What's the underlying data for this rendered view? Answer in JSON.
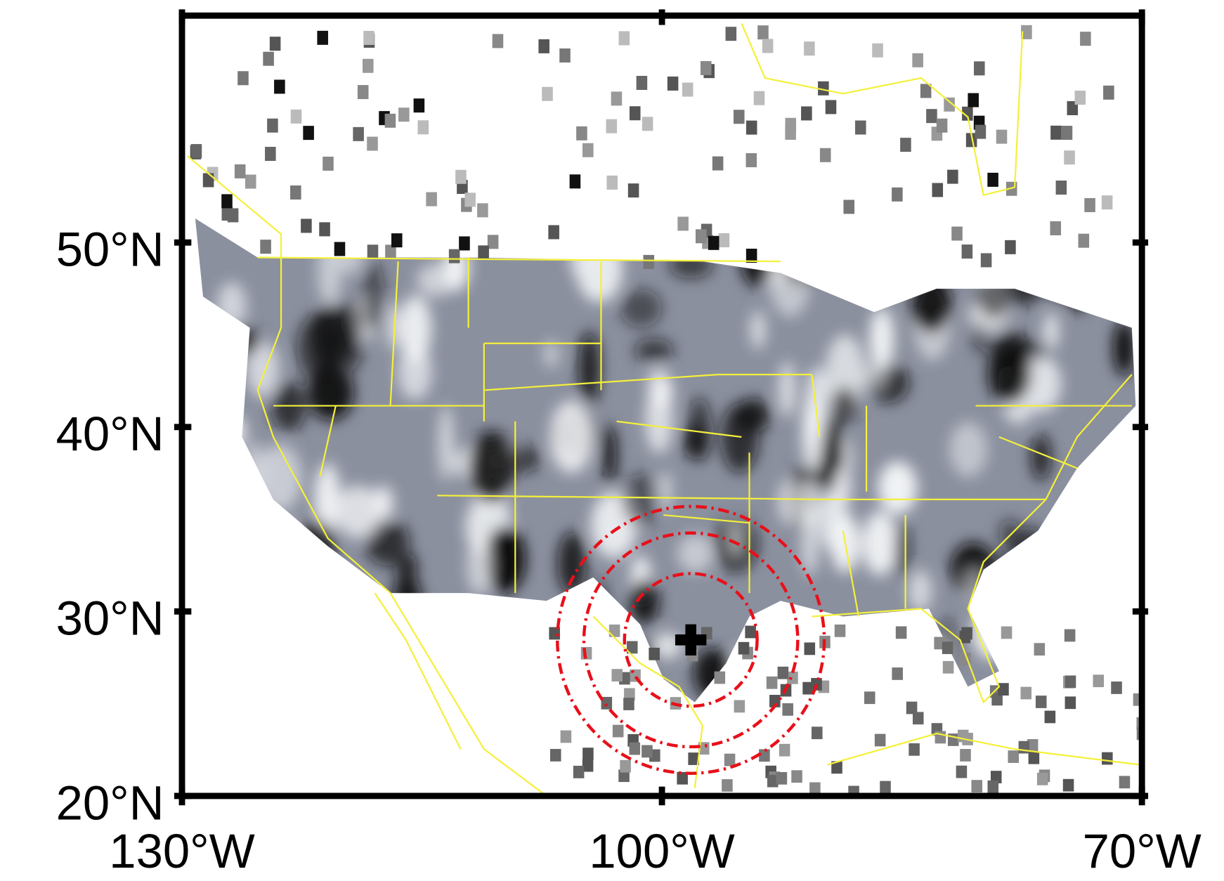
{
  "map": {
    "xlim": [
      -130,
      -70
    ],
    "ylim": [
      20,
      62.3
    ],
    "xticks": [
      {
        "value": -130,
        "label": "130°W"
      },
      {
        "value": -100,
        "label": "100°W"
      },
      {
        "value": -70,
        "label": "70°W"
      }
    ],
    "yticks": [
      {
        "value": 20,
        "label": "20°N"
      },
      {
        "value": 30,
        "label": "30°N"
      },
      {
        "value": 40,
        "label": "40°N"
      },
      {
        "value": 50,
        "label": "50°N"
      }
    ]
  }
}
